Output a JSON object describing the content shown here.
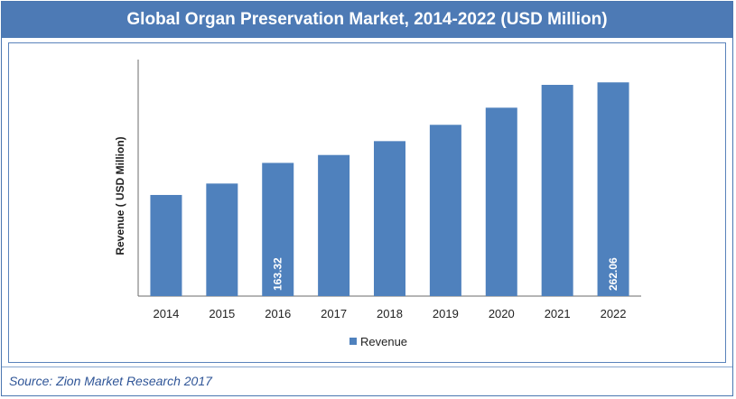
{
  "title": "Global Organ Preservation Market, 2014-2022 (USD Million)",
  "source": "Source: Zion Market Research 2017",
  "colors": {
    "bar": "#4f81bd",
    "header": "#4d7ab5",
    "source_text": "#2f5597"
  },
  "chart_data": {
    "type": "bar",
    "categories": [
      "2014",
      "2015",
      "2016",
      "2017",
      "2018",
      "2019",
      "2020",
      "2021",
      "2022"
    ],
    "series": [
      {
        "name": "Revenue",
        "values": [
          124,
          138,
          163.32,
          173,
          190,
          210,
          231,
          259,
          262.06
        ]
      }
    ],
    "data_labels": [
      "",
      "",
      "163.32",
      "",
      "",
      "",
      "",
      "",
      "262.06"
    ],
    "ylabel": "Revenue  ( USD Million)",
    "xlabel": "",
    "ylim": [
      0,
      290
    ],
    "grid": false,
    "legend": "bottom-center"
  }
}
